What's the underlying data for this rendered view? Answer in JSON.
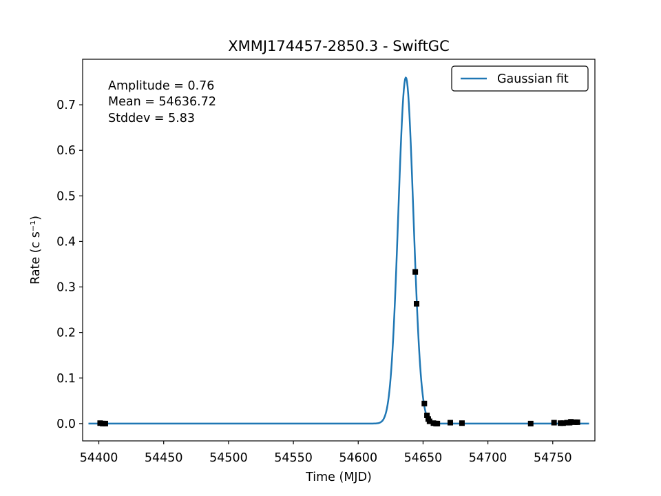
{
  "chart_data": {
    "type": "scatter",
    "title": "XMMJ174457-2850.3 - SwiftGC",
    "xlabel": "Time (MJD)",
    "ylabel": "Rate (c s⁻¹)",
    "xlim": [
      54387.5,
      54782.5
    ],
    "ylim": [
      -0.038,
      0.8
    ],
    "xticks": [
      54400,
      54450,
      54500,
      54550,
      54600,
      54650,
      54700,
      54750
    ],
    "yticks": [
      0.0,
      0.1,
      0.2,
      0.3,
      0.4,
      0.5,
      0.6,
      0.7
    ],
    "grid": false,
    "legend": {
      "position": "top-right",
      "entries": [
        "Gaussian fit"
      ]
    },
    "fit": {
      "name": "Gaussian fit",
      "color": "#1f77b4",
      "amplitude": 0.76,
      "mean": 54636.72,
      "stddev": 5.83,
      "x_range": [
        54392,
        54778
      ]
    },
    "annotations": [
      "Amplitude = 0.76",
      "Mean = 54636.72",
      "Stddev = 5.83"
    ],
    "points": {
      "color": "#000000",
      "x": [
        54401,
        54403,
        54405,
        54644,
        54645,
        54651,
        54653,
        54654,
        54655,
        54658,
        54660,
        54661,
        54671,
        54680,
        54733,
        54751,
        54756,
        54758,
        54761,
        54763,
        54764,
        54767,
        54769
      ],
      "y": [
        0.001,
        0.0,
        0.0,
        0.333,
        0.263,
        0.044,
        0.018,
        0.01,
        0.005,
        0.001,
        0.0,
        0.0,
        0.002,
        0.001,
        0.0,
        0.002,
        0.001,
        0.001,
        0.002,
        0.002,
        0.004,
        0.003,
        0.003
      ]
    }
  }
}
